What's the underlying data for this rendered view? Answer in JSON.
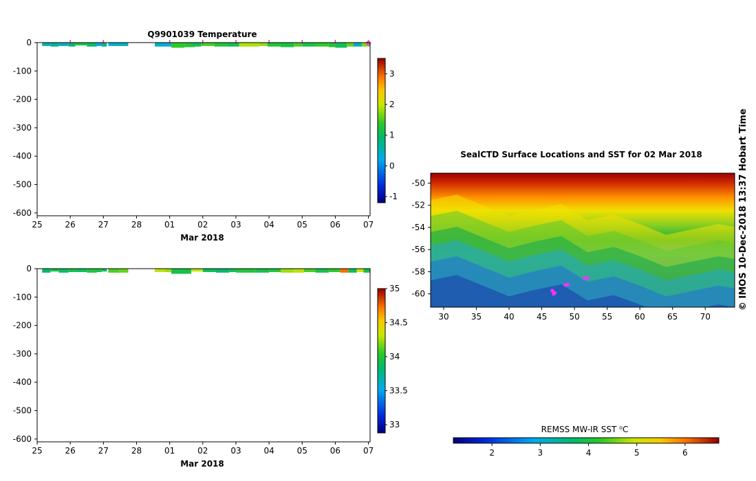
{
  "page": {
    "watermark": "© IMOS 10-Dec-2018 13:37 Hobart Time"
  },
  "chart_data": [
    {
      "id": "temperature_section",
      "type": "heatmap",
      "title": "Q9901039  Temperature",
      "xlabel": "Mar 2018",
      "ylabel": "",
      "x_tick_labels": [
        "25",
        "26",
        "27",
        "28",
        "01",
        "02",
        "03",
        "04",
        "05",
        "06",
        "07"
      ],
      "y_ticks": [
        0,
        -100,
        -200,
        -300,
        -400,
        -500,
        -600
      ],
      "y_tick_labels": [
        "0",
        "-100",
        "-200",
        "-300",
        "-400",
        "-500",
        "-600"
      ],
      "xlim": [
        0,
        10.05
      ],
      "ylim": [
        -610,
        0
      ],
      "colorbar": {
        "min": -1.2,
        "max": 3.5,
        "ticks": [
          -1,
          0,
          1,
          2,
          3
        ],
        "tick_labels": [
          "-1",
          "0",
          "1",
          "2",
          "3"
        ]
      },
      "surface_markers_day": [
        1,
        2,
        4,
        5,
        6,
        7,
        8,
        9,
        10
      ],
      "surface_marker_end_day": 10,
      "profiles": [
        {
          "day": 0.15,
          "w": 0.25,
          "depth": 12,
          "value": 0.6
        },
        {
          "day": 0.4,
          "w": 0.25,
          "depth": 14,
          "value": 0.7
        },
        {
          "day": 0.65,
          "w": 0.3,
          "depth": 12,
          "value": 0.5
        },
        {
          "day": 0.95,
          "w": 0.2,
          "depth": 14,
          "value": 0.9
        },
        {
          "day": 1.15,
          "w": 0.35,
          "depth": 10,
          "value": 1.2
        },
        {
          "day": 1.5,
          "w": 0.3,
          "depth": 14,
          "value": 1.0
        },
        {
          "day": 1.75,
          "w": 0.2,
          "depth": 12,
          "value": 0.3
        },
        {
          "day": 1.95,
          "w": 0.15,
          "depth": 14,
          "value": 0.8
        },
        {
          "day": 2.15,
          "w": 0.3,
          "depth": 12,
          "value": 0.4
        },
        {
          "day": 2.45,
          "w": 0.3,
          "depth": 12,
          "value": 0.5
        },
        {
          "day": 3.55,
          "w": 0.3,
          "depth": 14,
          "value": 0.4
        },
        {
          "day": 3.85,
          "w": 0.2,
          "depth": 14,
          "value": 0.3
        },
        {
          "day": 4.05,
          "w": 0.4,
          "depth": 18,
          "value": 1.4
        },
        {
          "day": 4.45,
          "w": 0.3,
          "depth": 16,
          "value": 1.3
        },
        {
          "day": 4.7,
          "w": 0.25,
          "depth": 14,
          "value": 1.1
        },
        {
          "day": 4.95,
          "w": 0.4,
          "depth": 12,
          "value": 1.5
        },
        {
          "day": 5.35,
          "w": 0.4,
          "depth": 14,
          "value": 1.3
        },
        {
          "day": 5.75,
          "w": 0.35,
          "depth": 14,
          "value": 1.1
        },
        {
          "day": 6.1,
          "w": 0.6,
          "depth": 14,
          "value": 1.9
        },
        {
          "day": 6.7,
          "w": 0.25,
          "depth": 12,
          "value": 1.8
        },
        {
          "day": 6.95,
          "w": 0.4,
          "depth": 14,
          "value": 1.3
        },
        {
          "day": 7.35,
          "w": 0.4,
          "depth": 16,
          "value": 1.2
        },
        {
          "day": 7.75,
          "w": 0.25,
          "depth": 14,
          "value": 1.5
        },
        {
          "day": 8.0,
          "w": 0.4,
          "depth": 14,
          "value": 1.2
        },
        {
          "day": 8.4,
          "w": 0.4,
          "depth": 14,
          "value": 1.4
        },
        {
          "day": 8.8,
          "w": 0.2,
          "depth": 16,
          "value": 1.3
        },
        {
          "day": 9.0,
          "w": 0.35,
          "depth": 18,
          "value": 1.1
        },
        {
          "day": 9.35,
          "w": 0.25,
          "depth": 14,
          "value": 1.6
        },
        {
          "day": 9.55,
          "w": 0.25,
          "depth": 14,
          "value": 0.5
        },
        {
          "day": 9.8,
          "w": 0.25,
          "depth": 14,
          "value": 1.7
        }
      ]
    },
    {
      "id": "salinity_section",
      "type": "heatmap",
      "title": "",
      "xlabel": "Mar 2018",
      "ylabel": "",
      "x_tick_labels": [
        "25",
        "26",
        "27",
        "28",
        "01",
        "02",
        "03",
        "04",
        "05",
        "06",
        "07"
      ],
      "y_ticks": [
        0,
        -100,
        -200,
        -300,
        -400,
        -500,
        -600
      ],
      "y_tick_labels": [
        "0",
        "-100",
        "-200",
        "-300",
        "-400",
        "-500",
        "-600"
      ],
      "xlim": [
        0,
        10.05
      ],
      "ylim": [
        -610,
        0
      ],
      "colorbar": {
        "min": 32.88,
        "max": 35.0,
        "ticks": [
          33,
          33.5,
          34,
          34.5,
          35
        ],
        "tick_labels": [
          "33",
          "33.5",
          "34",
          "34.5",
          "35"
        ]
      },
      "profiles": [
        {
          "day": 0.15,
          "w": 0.25,
          "depth": 14,
          "value": 33.85
        },
        {
          "day": 0.4,
          "w": 0.25,
          "depth": 10,
          "value": 33.95
        },
        {
          "day": 0.65,
          "w": 0.3,
          "depth": 14,
          "value": 33.9
        },
        {
          "day": 0.95,
          "w": 0.2,
          "depth": 12,
          "value": 33.95
        },
        {
          "day": 1.15,
          "w": 0.35,
          "depth": 12,
          "value": 33.9
        },
        {
          "day": 1.5,
          "w": 0.3,
          "depth": 14,
          "value": 34.0
        },
        {
          "day": 1.75,
          "w": 0.2,
          "depth": 12,
          "value": 33.95
        },
        {
          "day": 1.95,
          "w": 0.15,
          "depth": 10,
          "value": 33.9
        },
        {
          "day": 2.15,
          "w": 0.3,
          "depth": 14,
          "value": 34.1
        },
        {
          "day": 2.45,
          "w": 0.3,
          "depth": 14,
          "value": 34.15
        },
        {
          "day": 3.55,
          "w": 0.3,
          "depth": 12,
          "value": 34.3
        },
        {
          "day": 3.85,
          "w": 0.2,
          "depth": 12,
          "value": 34.25
        },
        {
          "day": 4.05,
          "w": 0.6,
          "depth": 18,
          "value": 33.95
        },
        {
          "day": 4.65,
          "w": 0.35,
          "depth": 10,
          "value": 34.3
        },
        {
          "day": 5.0,
          "w": 0.4,
          "depth": 12,
          "value": 33.9
        },
        {
          "day": 5.4,
          "w": 0.4,
          "depth": 14,
          "value": 33.85
        },
        {
          "day": 5.8,
          "w": 0.2,
          "depth": 12,
          "value": 33.9
        },
        {
          "day": 6.0,
          "w": 0.6,
          "depth": 14,
          "value": 34.0
        },
        {
          "day": 6.6,
          "w": 0.4,
          "depth": 14,
          "value": 33.95
        },
        {
          "day": 7.0,
          "w": 0.35,
          "depth": 12,
          "value": 34.0
        },
        {
          "day": 7.35,
          "w": 0.4,
          "depth": 14,
          "value": 34.25
        },
        {
          "day": 7.75,
          "w": 0.3,
          "depth": 14,
          "value": 34.3
        },
        {
          "day": 8.05,
          "w": 0.35,
          "depth": 12,
          "value": 34.1
        },
        {
          "day": 8.4,
          "w": 0.4,
          "depth": 14,
          "value": 33.95
        },
        {
          "day": 8.8,
          "w": 0.35,
          "depth": 12,
          "value": 34.05
        },
        {
          "day": 9.15,
          "w": 0.25,
          "depth": 14,
          "value": 34.75
        },
        {
          "day": 9.4,
          "w": 0.25,
          "depth": 14,
          "value": 33.9
        },
        {
          "day": 9.65,
          "w": 0.2,
          "depth": 12,
          "value": 34.35
        },
        {
          "day": 9.85,
          "w": 0.2,
          "depth": 14,
          "value": 33.95
        }
      ]
    },
    {
      "id": "sst_map",
      "type": "heatmap",
      "title": "SealCTD Surface Locations and SST for 02 Mar 2018",
      "xlabel": "",
      "ylabel": "",
      "xlim": [
        28,
        74.5
      ],
      "ylim": [
        -61.2,
        -49.1
      ],
      "x_ticks": [
        30,
        35,
        40,
        45,
        50,
        55,
        60,
        65,
        70
      ],
      "x_tick_labels": [
        "30",
        "35",
        "40",
        "45",
        "50",
        "55",
        "60",
        "65",
        "70"
      ],
      "y_ticks": [
        -50,
        -52,
        -54,
        -56,
        -58,
        -60
      ],
      "y_tick_labels": [
        "-50",
        "-52",
        "-54",
        "-56",
        "-58",
        "-60"
      ],
      "colorbar": {
        "label": "REMSS MW-IR SST ⁰C",
        "min": 1.2,
        "max": 6.7,
        "ticks": [
          2,
          3,
          4,
          5,
          6
        ],
        "tick_labels": [
          "2",
          "3",
          "4",
          "5",
          "6"
        ]
      },
      "sst_front_profile": [
        {
          "lon": 28,
          "v": 0.4
        },
        {
          "lon": 32,
          "v": 0.36
        },
        {
          "lon": 36,
          "v": 0.44
        },
        {
          "lon": 40,
          "v": 0.52
        },
        {
          "lon": 44,
          "v": 0.47
        },
        {
          "lon": 48,
          "v": 0.43
        },
        {
          "lon": 52,
          "v": 0.55
        },
        {
          "lon": 56,
          "v": 0.51
        },
        {
          "lon": 60,
          "v": 0.58
        },
        {
          "lon": 64,
          "v": 0.66
        },
        {
          "lon": 68,
          "v": 0.62
        },
        {
          "lon": 72,
          "v": 0.58
        },
        {
          "lon": 74.5,
          "v": 0.6
        }
      ],
      "seal_track": [
        {
          "lon": 46.6,
          "lat": -59.7
        },
        {
          "lon": 46.8,
          "lat": -60.0
        },
        {
          "lon": 47.0,
          "lat": -59.9
        },
        {
          "lon": 48.6,
          "lat": -59.2
        },
        {
          "lon": 49.0,
          "lat": -59.15
        },
        {
          "lon": 51.5,
          "lat": -58.6
        },
        {
          "lon": 52.0,
          "lat": -58.55
        }
      ]
    }
  ]
}
